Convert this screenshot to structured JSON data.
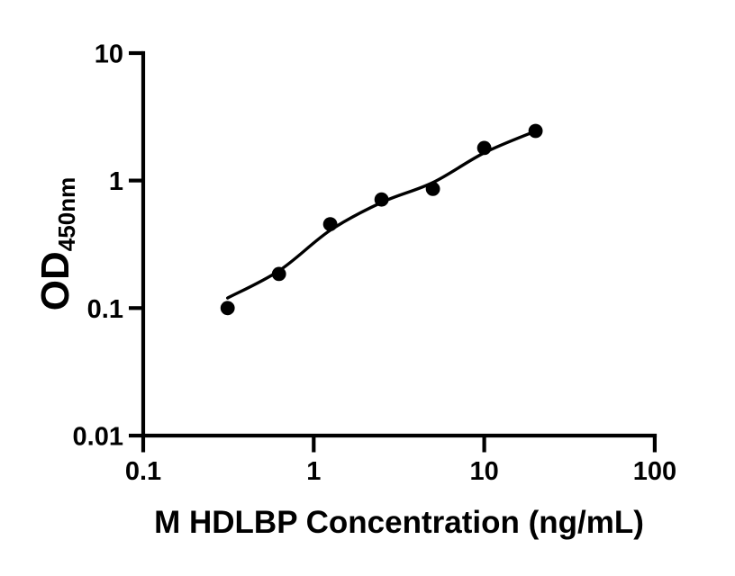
{
  "figure": {
    "background": "#ffffff",
    "ink": "#000000"
  },
  "chart_data": {
    "type": "scatter",
    "title": "",
    "xlabel": "M HDLBP Concentration (ng/mL)",
    "ylabel": "OD",
    "ylabel_subscript": "450nm",
    "x_scale": "log",
    "y_scale": "log",
    "xlim": [
      0.1,
      100
    ],
    "ylim": [
      0.01,
      10
    ],
    "grid": false,
    "legend": null,
    "marker": "filled-circle",
    "x_ticks": [
      {
        "value": 0.1,
        "label": "0.1"
      },
      {
        "value": 1,
        "label": "1"
      },
      {
        "value": 10,
        "label": "10"
      },
      {
        "value": 100,
        "label": "100"
      }
    ],
    "y_ticks": [
      {
        "value": 10,
        "label": "10"
      },
      {
        "value": 1,
        "label": "1"
      },
      {
        "value": 0.1,
        "label": "0.1"
      },
      {
        "value": 0.01,
        "label": "0.01"
      }
    ],
    "points": {
      "x": [
        0.3125,
        0.625,
        1.25,
        2.5,
        5,
        10,
        20
      ],
      "od": [
        0.1,
        0.185,
        0.455,
        0.71,
        0.86,
        1.8,
        2.45
      ]
    },
    "fit_curve": {
      "x": [
        0.3125,
        0.625,
        1.25,
        2.5,
        5,
        10,
        20
      ],
      "od": [
        0.12,
        0.196,
        0.407,
        0.674,
        0.965,
        1.65,
        2.44
      ]
    }
  }
}
